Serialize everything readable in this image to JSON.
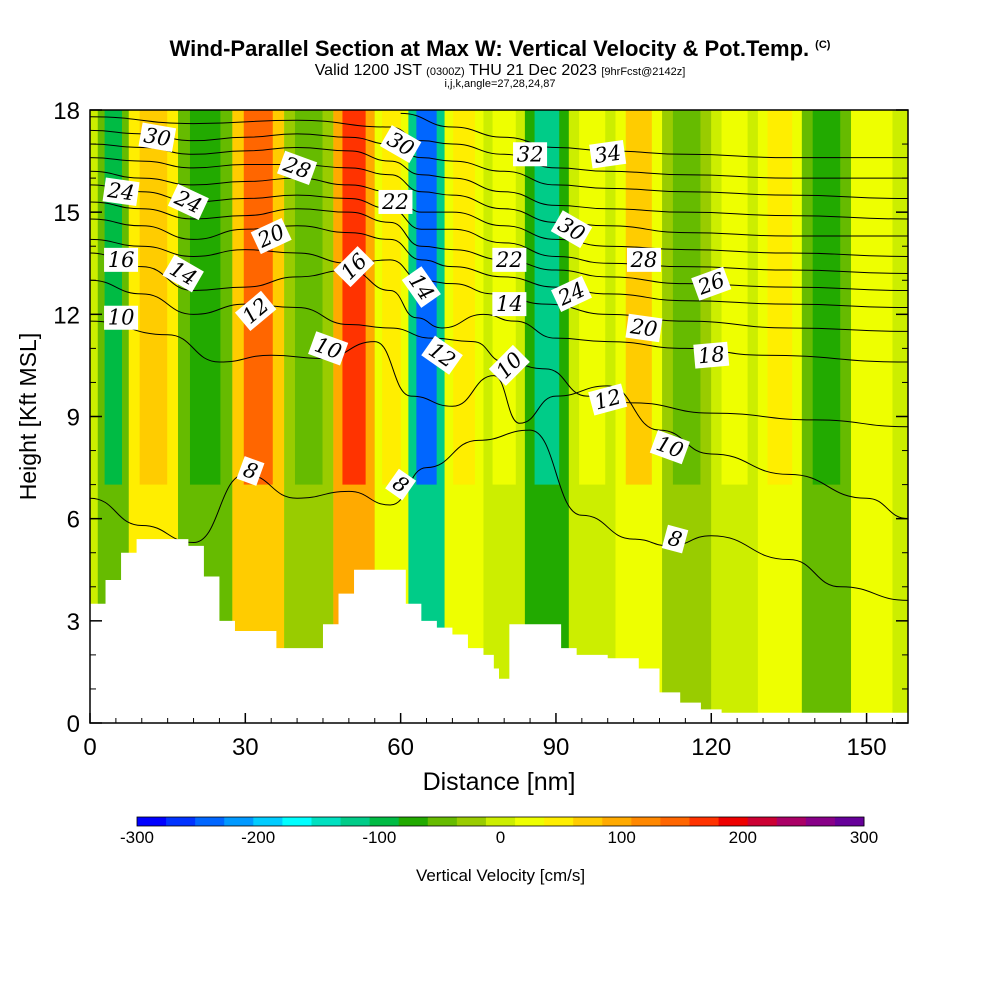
{
  "title": {
    "main": "Wind-Parallel Section at Max W: Vertical Velocity & Pot.Temp.",
    "copyright": "(C)",
    "valid_prefix": "Valid 1200 JST",
    "valid_utc": "(0300Z)",
    "valid_date": "THU 21 Dec 2023",
    "forecast": "[9hrFcst@2142z]",
    "indices": "i,j,k,angle=27,28,24,87"
  },
  "colors": {
    "scale": [
      "#0000ff",
      "#0033ff",
      "#0066ff",
      "#0099ff",
      "#00ccff",
      "#00ffff",
      "#00e0c0",
      "#00cc88",
      "#00bb44",
      "#22aa00",
      "#66bb00",
      "#99cc00",
      "#ccee00",
      "#eeff00",
      "#ffee00",
      "#ffcc00",
      "#ffaa00",
      "#ff8800",
      "#ff6600",
      "#ff3300",
      "#ee0000",
      "#cc0033",
      "#aa0066",
      "#880088",
      "#660099"
    ],
    "terrain": "#ffffff",
    "contour": "#000000"
  },
  "chart_data": {
    "type": "heatmap",
    "xlabel": "Distance [nm]",
    "ylabel": "Height [Kft MSL]",
    "xlim": [
      0,
      158
    ],
    "ylim": [
      0,
      18
    ],
    "xticks": [
      0,
      30,
      60,
      90,
      120,
      150
    ],
    "yticks": [
      0,
      3,
      6,
      9,
      12,
      15,
      18
    ],
    "colorbar": {
      "label": "Vertical Velocity [cm/s]",
      "range": [
        -300,
        300
      ],
      "ticks": [
        -300,
        -200,
        -100,
        0,
        100,
        200,
        300
      ]
    },
    "velocity_columns": [
      {
        "x": 3,
        "w": -100
      },
      {
        "x": 12,
        "w": 80
      },
      {
        "x": 22,
        "w": -80
      },
      {
        "x": 33,
        "w": 150
      },
      {
        "x": 42,
        "w": -40
      },
      {
        "x": 52,
        "w": 170
      },
      {
        "x": 58,
        "w": 40
      },
      {
        "x": 65,
        "w": -240
      },
      {
        "x": 72,
        "w": 40
      },
      {
        "x": 80,
        "w": 20
      },
      {
        "x": 88,
        "w": -120
      },
      {
        "x": 97,
        "w": 20
      },
      {
        "x": 106,
        "w": 60
      },
      {
        "x": 115,
        "w": -60
      },
      {
        "x": 125,
        "w": 20
      },
      {
        "x": 133,
        "w": 40
      },
      {
        "x": 142,
        "w": -70
      },
      {
        "x": 152,
        "w": 30
      }
    ],
    "terrain_profile": [
      {
        "x": 0,
        "h": 3.5
      },
      {
        "x": 3,
        "h": 4.2
      },
      {
        "x": 6,
        "h": 5.0
      },
      {
        "x": 9,
        "h": 5.4
      },
      {
        "x": 19,
        "h": 5.2
      },
      {
        "x": 22,
        "h": 4.3
      },
      {
        "x": 25,
        "h": 3.0
      },
      {
        "x": 28,
        "h": 2.7
      },
      {
        "x": 36,
        "h": 2.2
      },
      {
        "x": 42,
        "h": 2.2
      },
      {
        "x": 45,
        "h": 2.9
      },
      {
        "x": 48,
        "h": 3.8
      },
      {
        "x": 51,
        "h": 4.5
      },
      {
        "x": 58,
        "h": 4.5
      },
      {
        "x": 61,
        "h": 3.5
      },
      {
        "x": 64,
        "h": 3.0
      },
      {
        "x": 67,
        "h": 2.8
      },
      {
        "x": 70,
        "h": 2.6
      },
      {
        "x": 73,
        "h": 2.2
      },
      {
        "x": 76,
        "h": 2.0
      },
      {
        "x": 78,
        "h": 1.6
      },
      {
        "x": 79,
        "h": 1.3
      },
      {
        "x": 81,
        "h": 2.9
      },
      {
        "x": 84,
        "h": 2.9
      },
      {
        "x": 89,
        "h": 2.9
      },
      {
        "x": 91,
        "h": 2.2
      },
      {
        "x": 94,
        "h": 2.0
      },
      {
        "x": 100,
        "h": 1.9
      },
      {
        "x": 106,
        "h": 1.6
      },
      {
        "x": 110,
        "h": 0.9
      },
      {
        "x": 114,
        "h": 0.6
      },
      {
        "x": 118,
        "h": 0.4
      },
      {
        "x": 122,
        "h": 0.3
      },
      {
        "x": 158,
        "h": 0.3
      }
    ],
    "isentropes": [
      {
        "theta": 8,
        "pts": [
          [
            0,
            6.6
          ],
          [
            10,
            5.8
          ],
          [
            20,
            5.3
          ],
          [
            30,
            7.3
          ],
          [
            40,
            6.6
          ],
          [
            50,
            6.8
          ],
          [
            58,
            6.4
          ],
          [
            65,
            7.5
          ],
          [
            75,
            8.3
          ],
          [
            85,
            8.6
          ],
          [
            95,
            6.1
          ],
          [
            105,
            5.4
          ],
          [
            112,
            5.2
          ],
          [
            120,
            5.5
          ],
          [
            135,
            4.8
          ],
          [
            145,
            4.0
          ],
          [
            158,
            3.6
          ]
        ]
      },
      {
        "theta": 10,
        "pts": [
          [
            0,
            11.8
          ],
          [
            15,
            11.4
          ],
          [
            25,
            10.6
          ],
          [
            35,
            10.8
          ],
          [
            45,
            10.7
          ],
          [
            55,
            11.2
          ],
          [
            62,
            9.6
          ],
          [
            70,
            9.3
          ],
          [
            78,
            10.2
          ],
          [
            83,
            8.8
          ],
          [
            90,
            9.6
          ],
          [
            100,
            9.9
          ],
          [
            110,
            8.6
          ],
          [
            120,
            7.9
          ],
          [
            135,
            7.3
          ],
          [
            150,
            6.6
          ],
          [
            158,
            6.0
          ]
        ]
      },
      {
        "theta": 12,
        "pts": [
          [
            0,
            13.0
          ],
          [
            10,
            12.6
          ],
          [
            20,
            12.0
          ],
          [
            30,
            12.3
          ],
          [
            40,
            12.2
          ],
          [
            50,
            11.7
          ],
          [
            58,
            11.6
          ],
          [
            66,
            11.3
          ],
          [
            74,
            11.2
          ],
          [
            80,
            10.6
          ],
          [
            88,
            10.4
          ],
          [
            96,
            9.6
          ],
          [
            105,
            9.4
          ],
          [
            120,
            9.1
          ],
          [
            140,
            8.9
          ],
          [
            158,
            8.7
          ]
        ]
      },
      {
        "theta": 14,
        "pts": [
          [
            0,
            13.8
          ],
          [
            10,
            13.4
          ],
          [
            20,
            12.7
          ],
          [
            30,
            12.8
          ],
          [
            40,
            13.1
          ],
          [
            50,
            13.3
          ],
          [
            58,
            12.7
          ],
          [
            63,
            11.9
          ],
          [
            68,
            11.6
          ],
          [
            76,
            12.0
          ],
          [
            82,
            11.8
          ],
          [
            90,
            11.3
          ],
          [
            100,
            11.2
          ],
          [
            115,
            11.0
          ],
          [
            130,
            10.8
          ],
          [
            158,
            10.6
          ]
        ]
      },
      {
        "theta": 16,
        "pts": [
          [
            0,
            14.2
          ],
          [
            10,
            14.0
          ],
          [
            20,
            13.7
          ],
          [
            30,
            13.9
          ],
          [
            40,
            13.8
          ],
          [
            50,
            13.5
          ],
          [
            58,
            13.6
          ],
          [
            64,
            13.0
          ],
          [
            70,
            12.9
          ],
          [
            78,
            12.6
          ],
          [
            88,
            12.3
          ],
          [
            100,
            12.0
          ],
          [
            115,
            11.8
          ],
          [
            135,
            11.6
          ],
          [
            158,
            11.5
          ]
        ]
      },
      {
        "theta": 18,
        "pts": [
          [
            0,
            14.8
          ],
          [
            10,
            14.6
          ],
          [
            20,
            14.2
          ],
          [
            30,
            14.5
          ],
          [
            40,
            14.6
          ],
          [
            50,
            14.4
          ],
          [
            58,
            14.2
          ],
          [
            64,
            13.6
          ],
          [
            70,
            13.4
          ],
          [
            80,
            13.1
          ],
          [
            90,
            12.8
          ],
          [
            100,
            12.6
          ],
          [
            115,
            12.4
          ],
          [
            135,
            12.3
          ],
          [
            158,
            12.2
          ]
        ]
      },
      {
        "theta": 20,
        "pts": [
          [
            0,
            15.3
          ],
          [
            10,
            15.1
          ],
          [
            20,
            14.8
          ],
          [
            30,
            14.9
          ],
          [
            40,
            15.1
          ],
          [
            50,
            15.0
          ],
          [
            58,
            14.7
          ],
          [
            64,
            14.0
          ],
          [
            70,
            13.9
          ],
          [
            80,
            13.6
          ],
          [
            90,
            13.3
          ],
          [
            100,
            13.1
          ],
          [
            115,
            12.9
          ],
          [
            135,
            12.8
          ],
          [
            158,
            12.7
          ]
        ]
      },
      {
        "theta": 22,
        "pts": [
          [
            0,
            15.8
          ],
          [
            10,
            15.6
          ],
          [
            20,
            15.3
          ],
          [
            30,
            15.4
          ],
          [
            40,
            15.5
          ],
          [
            50,
            15.4
          ],
          [
            58,
            15.1
          ],
          [
            64,
            14.5
          ],
          [
            70,
            14.5
          ],
          [
            80,
            14.1
          ],
          [
            90,
            13.7
          ],
          [
            100,
            13.5
          ],
          [
            115,
            13.4
          ],
          [
            135,
            13.3
          ],
          [
            158,
            13.2
          ]
        ]
      },
      {
        "theta": 24,
        "pts": [
          [
            0,
            16.2
          ],
          [
            10,
            16.0
          ],
          [
            20,
            15.8
          ],
          [
            30,
            15.9
          ],
          [
            40,
            16.0
          ],
          [
            50,
            15.8
          ],
          [
            58,
            15.6
          ],
          [
            64,
            15.0
          ],
          [
            70,
            15.0
          ],
          [
            80,
            14.6
          ],
          [
            90,
            14.2
          ],
          [
            100,
            14.0
          ],
          [
            115,
            13.9
          ],
          [
            135,
            13.8
          ],
          [
            158,
            13.7
          ]
        ]
      },
      {
        "theta": 26,
        "pts": [
          [
            0,
            16.6
          ],
          [
            10,
            16.5
          ],
          [
            20,
            16.3
          ],
          [
            30,
            16.4
          ],
          [
            40,
            16.4
          ],
          [
            50,
            16.3
          ],
          [
            58,
            16.1
          ],
          [
            64,
            15.6
          ],
          [
            70,
            15.5
          ],
          [
            80,
            15.1
          ],
          [
            90,
            14.7
          ],
          [
            100,
            14.6
          ],
          [
            115,
            14.4
          ],
          [
            135,
            14.3
          ],
          [
            158,
            14.3
          ]
        ]
      },
      {
        "theta": 28,
        "pts": [
          [
            0,
            17.0
          ],
          [
            10,
            16.9
          ],
          [
            20,
            16.7
          ],
          [
            30,
            16.8
          ],
          [
            40,
            16.9
          ],
          [
            50,
            16.8
          ],
          [
            58,
            16.5
          ],
          [
            64,
            16.1
          ],
          [
            70,
            16.0
          ],
          [
            80,
            15.6
          ],
          [
            90,
            15.2
          ],
          [
            100,
            15.1
          ],
          [
            115,
            15.0
          ],
          [
            135,
            14.9
          ],
          [
            158,
            14.8
          ]
        ]
      },
      {
        "theta": 30,
        "pts": [
          [
            0,
            17.4
          ],
          [
            10,
            17.3
          ],
          [
            20,
            17.1
          ],
          [
            30,
            17.2
          ],
          [
            40,
            17.3
          ],
          [
            50,
            17.2
          ],
          [
            58,
            17.0
          ],
          [
            64,
            16.6
          ],
          [
            70,
            16.5
          ],
          [
            80,
            16.2
          ],
          [
            90,
            15.8
          ],
          [
            100,
            15.7
          ],
          [
            115,
            15.6
          ],
          [
            135,
            15.5
          ],
          [
            158,
            15.4
          ]
        ]
      },
      {
        "theta": 32,
        "pts": [
          [
            0,
            17.8
          ],
          [
            20,
            17.6
          ],
          [
            40,
            17.7
          ],
          [
            58,
            17.5
          ],
          [
            64,
            17.1
          ],
          [
            70,
            17.0
          ],
          [
            80,
            16.7
          ],
          [
            90,
            16.3
          ],
          [
            100,
            16.2
          ],
          [
            115,
            16.1
          ],
          [
            135,
            16.0
          ],
          [
            158,
            16.0
          ]
        ]
      },
      {
        "theta": 34,
        "pts": [
          [
            60,
            17.9
          ],
          [
            70,
            17.5
          ],
          [
            80,
            17.2
          ],
          [
            90,
            16.9
          ],
          [
            100,
            16.8
          ],
          [
            115,
            16.7
          ],
          [
            135,
            16.6
          ],
          [
            158,
            16.6
          ]
        ]
      }
    ],
    "contour_labels": [
      {
        "text": "30",
        "x": 13,
        "y": 17.2,
        "rot": 10
      },
      {
        "text": "24",
        "x": 6,
        "y": 15.6,
        "rot": 8
      },
      {
        "text": "24",
        "x": 19,
        "y": 15.3,
        "rot": 25
      },
      {
        "text": "28",
        "x": 40,
        "y": 16.3,
        "rot": 20
      },
      {
        "text": "30",
        "x": 60,
        "y": 17.0,
        "rot": 30
      },
      {
        "text": "32",
        "x": 85,
        "y": 16.7,
        "rot": 0
      },
      {
        "text": "34",
        "x": 100,
        "y": 16.7,
        "rot": -8
      },
      {
        "text": "16",
        "x": 6,
        "y": 13.6,
        "rot": 0
      },
      {
        "text": "14",
        "x": 18,
        "y": 13.2,
        "rot": 30
      },
      {
        "text": "20",
        "x": 35,
        "y": 14.3,
        "rot": -25
      },
      {
        "text": "22",
        "x": 59,
        "y": 15.3,
        "rot": 0
      },
      {
        "text": "16",
        "x": 51,
        "y": 13.4,
        "rot": -45
      },
      {
        "text": "22",
        "x": 81,
        "y": 13.6,
        "rot": 0
      },
      {
        "text": "30",
        "x": 93,
        "y": 14.5,
        "rot": 30
      },
      {
        "text": "28",
        "x": 107,
        "y": 13.6,
        "rot": 0
      },
      {
        "text": "26",
        "x": 120,
        "y": 12.9,
        "rot": -20
      },
      {
        "text": "12",
        "x": 32,
        "y": 12.1,
        "rot": -40
      },
      {
        "text": "14",
        "x": 64,
        "y": 12.8,
        "rot": 55
      },
      {
        "text": "14",
        "x": 81,
        "y": 12.3,
        "rot": 0
      },
      {
        "text": "24",
        "x": 93,
        "y": 12.6,
        "rot": -25
      },
      {
        "text": "20",
        "x": 107,
        "y": 11.6,
        "rot": 8
      },
      {
        "text": "18",
        "x": 120,
        "y": 10.8,
        "rot": -5
      },
      {
        "text": "10",
        "x": 6,
        "y": 11.9,
        "rot": 0
      },
      {
        "text": "10",
        "x": 46,
        "y": 11.0,
        "rot": 20
      },
      {
        "text": "12",
        "x": 68,
        "y": 10.8,
        "rot": 35
      },
      {
        "text": "10",
        "x": 81,
        "y": 10.5,
        "rot": -45
      },
      {
        "text": "12",
        "x": 100,
        "y": 9.5,
        "rot": -15
      },
      {
        "text": "10",
        "x": 112,
        "y": 8.1,
        "rot": 20
      },
      {
        "text": "8",
        "x": 31,
        "y": 7.4,
        "rot": 20
      },
      {
        "text": "8",
        "x": 60,
        "y": 7.0,
        "rot": 35
      },
      {
        "text": "8",
        "x": 113,
        "y": 5.4,
        "rot": 15
      }
    ]
  }
}
